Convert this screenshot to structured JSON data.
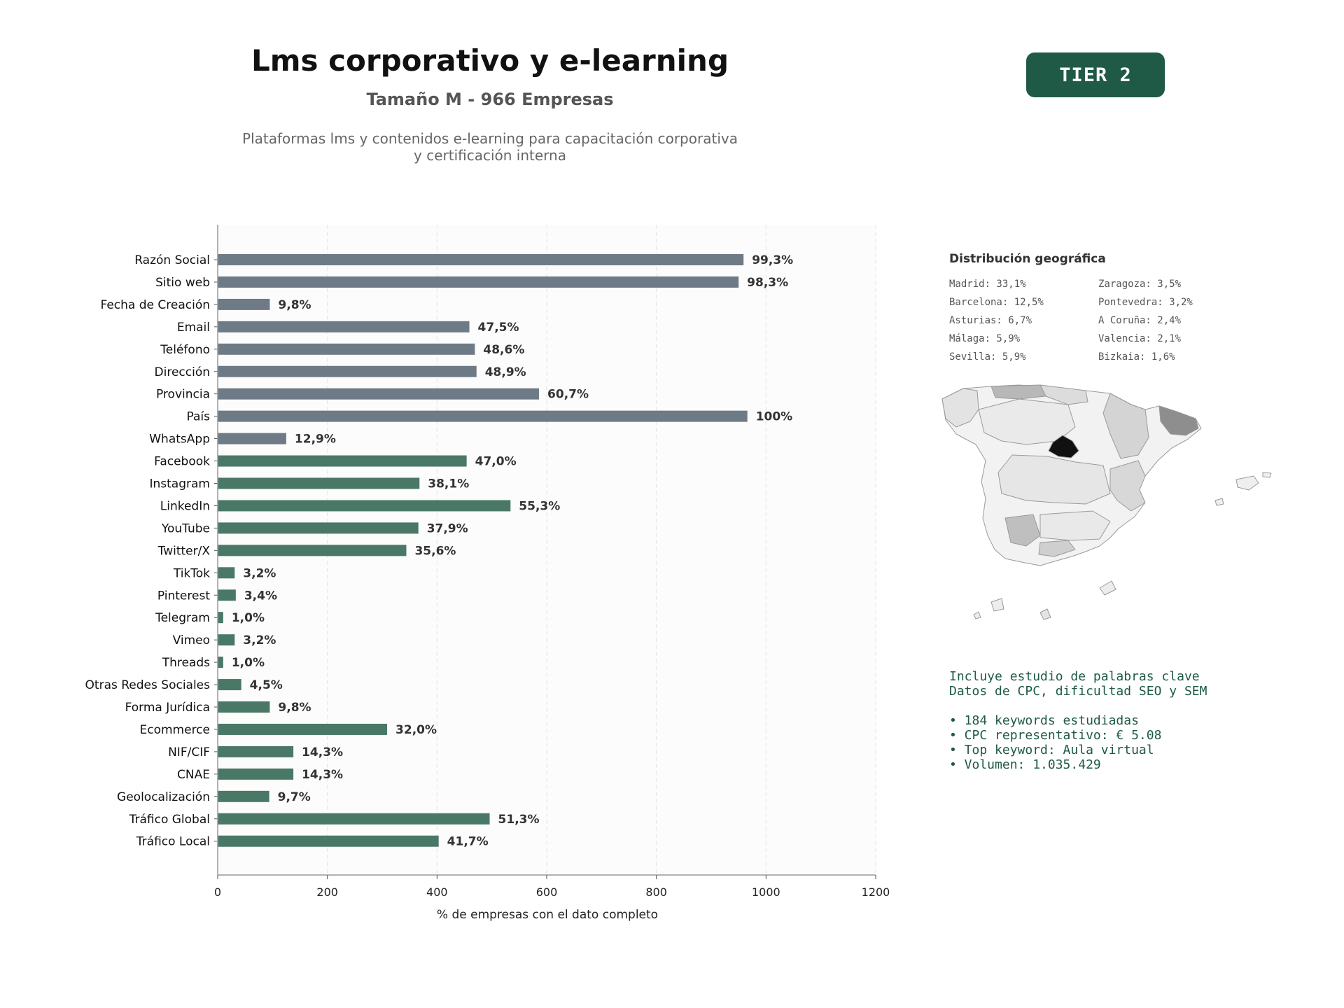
{
  "header": {
    "title": "Lms corporativo y e-learning",
    "subtitle": "Tamaño M - 966 Empresas",
    "description_line1": "Plataformas lms y contenidos e-learning para capacitación corporativa",
    "description_line2": "y certificación interna",
    "tier_badge": "TIER 2"
  },
  "chart_data": {
    "type": "bar",
    "orientation": "horizontal",
    "categories": [
      "Razón Social",
      "Sitio web",
      "Fecha de Creación",
      "Email",
      "Teléfono",
      "Dirección",
      "Provincia",
      "País",
      "WhatsApp",
      "Facebook",
      "Instagram",
      "LinkedIn",
      "YouTube",
      "Twitter/X",
      "TikTok",
      "Pinterest",
      "Telegram",
      "Vimeo",
      "Threads",
      "Otras Redes Sociales",
      "Forma Jurídica",
      "Ecommerce",
      "NIF/CIF",
      "CNAE",
      "Geolocalización",
      "Tráfico Global",
      "Tráfico Local"
    ],
    "values": [
      959,
      950,
      95,
      459,
      469,
      472,
      586,
      966,
      125,
      454,
      368,
      534,
      366,
      344,
      31,
      33,
      10,
      31,
      10,
      43,
      95,
      309,
      138,
      138,
      94,
      496,
      403
    ],
    "labels": [
      "99,3%",
      "98,3%",
      "9,8%",
      "47,5%",
      "48,6%",
      "48,9%",
      "60,7%",
      "100%",
      "12,9%",
      "47,0%",
      "38,1%",
      "55,3%",
      "37,9%",
      "35,6%",
      "3,2%",
      "3,4%",
      "1,0%",
      "3,2%",
      "1,0%",
      "4,5%",
      "9,8%",
      "32,0%",
      "14,3%",
      "14,3%",
      "9,7%",
      "51,3%",
      "41,7%"
    ],
    "groups": [
      "basic",
      "basic",
      "basic",
      "basic",
      "basic",
      "basic",
      "basic",
      "basic",
      "basic",
      "social",
      "social",
      "social",
      "social",
      "social",
      "social",
      "social",
      "social",
      "social",
      "social",
      "social",
      "social",
      "social",
      "social",
      "social",
      "social",
      "social",
      "social"
    ],
    "xlabel": "% de empresas con el dato completo",
    "xlim": [
      0,
      1200
    ],
    "xticks": [
      0,
      200,
      400,
      600,
      800,
      1000,
      1200
    ],
    "grid": "vertical dashed",
    "colors": {
      "basic": "#6e7b86",
      "other": "#4a7866"
    }
  },
  "geo": {
    "title": "Distribución geográfica",
    "items": [
      "Madrid: 33,1%",
      "Zaragoza: 3,5%",
      "Barcelona: 12,5%",
      "Pontevedra: 3,2%",
      "Asturias: 6,7%",
      "A Coruña: 2,4%",
      "Málaga: 5,9%",
      "Valencia: 2,1%",
      "Sevilla: 5,9%",
      "Bizkaia: 1,6%"
    ]
  },
  "info": {
    "line1": "Incluye estudio de palabras clave",
    "line2": "Datos de CPC, dificultad SEO y SEM",
    "bullets": [
      "• 184 keywords estudiadas",
      "• CPC representativo: € 5.08",
      "• Top keyword: Aula virtual",
      "• Volumen: 1.035.429"
    ]
  }
}
